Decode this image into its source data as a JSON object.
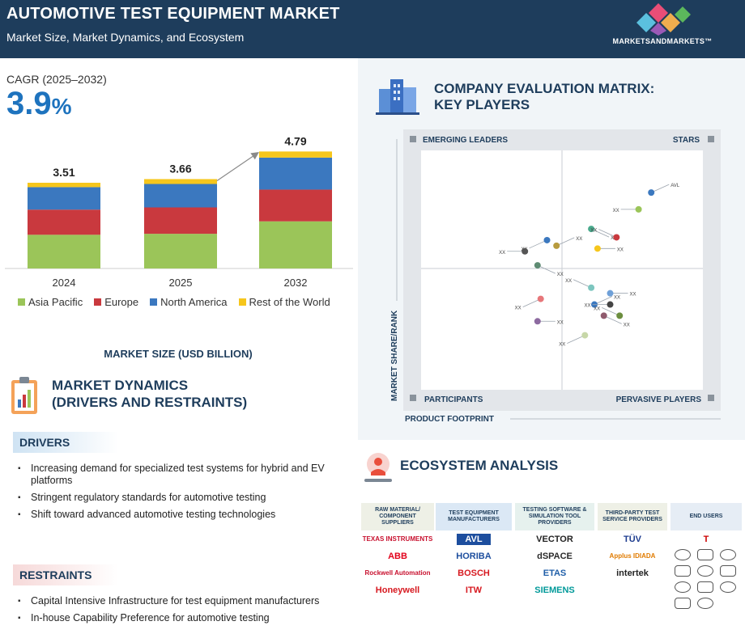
{
  "header": {
    "title": "AUTOMOTIVE TEST EQUIPMENT MARKET",
    "subtitle": "Market Size, Market Dynamics, and Ecosystem",
    "brand": "MARKETSANDMARKETS™"
  },
  "market_size": {
    "cagr_label": "CAGR (2025–2032)",
    "cagr_value": "3.9",
    "cagr_unit": "%",
    "caption": "MARKET SIZE (USD BILLION)"
  },
  "chart_data": {
    "type": "bar",
    "stacked": true,
    "categories": [
      "2024",
      "2025",
      "2032"
    ],
    "totals": [
      "3.51",
      "3.66",
      "4.79"
    ],
    "totals_values": [
      3.51,
      3.66,
      4.79
    ],
    "series": [
      {
        "name": "Asia Pacific",
        "color": "#9bc559",
        "values": [
          1.38,
          1.42,
          1.93
        ]
      },
      {
        "name": "Europe",
        "color": "#c9393e",
        "values": [
          1.03,
          1.08,
          1.3
        ]
      },
      {
        "name": "North America",
        "color": "#3b78bf",
        "values": [
          0.92,
          0.96,
          1.31
        ]
      },
      {
        "name": "Rest of the World",
        "color": "#f6c61c",
        "values": [
          0.18,
          0.2,
          0.25
        ]
      }
    ],
    "legend_position": "bottom",
    "grid": false
  },
  "dynamics": {
    "title_line1": "MARKET DYNAMICS",
    "title_line2": "(DRIVERS AND RESTRAINTS)",
    "drivers_label": "DRIVERS",
    "drivers": [
      "Increasing demand for specialized test systems for hybrid and EV platforms",
      "Stringent regulatory standards for  automotive testing",
      "Shift toward advanced automotive testing technologies"
    ],
    "restraints_label": "RESTRAINTS",
    "restraints": [
      "Capital Intensive Infrastructure for test equipment manufacturers",
      "In-house Capability Preference for automotive testing"
    ]
  },
  "matrix": {
    "title_line1": "COMPANY EVALUATION MATRIX:",
    "title_line2": "KEY PLAYERS",
    "quadrants": {
      "top_left": "EMERGING LEADERS",
      "top_right": "STARS",
      "bottom_left": "PARTICIPANTS",
      "bottom_right": "PERVASIVE PLAYERS"
    },
    "y_axis": "MARKET SHARE/RANK",
    "x_axis": "PRODUCT FOOTPRINT",
    "points": [
      {
        "label": "AVL",
        "color": "#3b78bf",
        "fx": 0.78,
        "fy": 0.22
      },
      {
        "label": "XX",
        "color": "#9bc559",
        "fx": 0.74,
        "fy": 0.28
      },
      {
        "label": "XX",
        "color": "#49a98c",
        "fx": 0.59,
        "fy": 0.35
      },
      {
        "label": "XX",
        "color": "#c9393e",
        "fx": 0.67,
        "fy": 0.38
      },
      {
        "label": "XX",
        "color": "#f6c61c",
        "fx": 0.61,
        "fy": 0.42
      },
      {
        "label": "XX",
        "color": "#3b78bf",
        "fx": 0.45,
        "fy": 0.39
      },
      {
        "label": "XX",
        "color": "#b89b3e",
        "fx": 0.48,
        "fy": 0.41
      },
      {
        "label": "XX",
        "color": "#555555",
        "fx": 0.38,
        "fy": 0.43
      },
      {
        "label": "XX",
        "color": "#5e8b73",
        "fx": 0.42,
        "fy": 0.48
      },
      {
        "label": "XX",
        "color": "#7dc6bf",
        "fx": 0.59,
        "fy": 0.56
      },
      {
        "label": "XX",
        "color": "#6fa0d8",
        "fx": 0.65,
        "fy": 0.58
      },
      {
        "label": "XX",
        "color": "#e7777a",
        "fx": 0.43,
        "fy": 0.6
      },
      {
        "label": "XX",
        "color": "#3b78bf",
        "fx": 0.6,
        "fy": 0.62
      },
      {
        "label": "XX",
        "color": "#444444",
        "fx": 0.65,
        "fy": 0.62
      },
      {
        "label": "XX",
        "color": "#8f5a6d",
        "fx": 0.63,
        "fy": 0.66
      },
      {
        "label": "XX",
        "color": "#6c8e3f",
        "fx": 0.68,
        "fy": 0.66
      },
      {
        "label": "XX",
        "color": "#8d6aa0",
        "fx": 0.42,
        "fy": 0.68
      },
      {
        "label": "XX",
        "color": "#c7d7a8",
        "fx": 0.57,
        "fy": 0.73
      }
    ]
  },
  "ecosystem": {
    "title": "ECOSYSTEM ANALYSIS",
    "columns": [
      {
        "header": "RAW MATERIAL/ COMPONENT SUPPLIERS",
        "bg": "#eef0e6",
        "logos": [
          {
            "text": "TEXAS INSTRUMENTS",
            "color": "#c8102e"
          },
          {
            "text": "ABB",
            "color": "#e2001a"
          },
          {
            "text": "Rockwell Automation",
            "color": "#c8102e"
          },
          {
            "text": "Honeywell",
            "color": "#d71920"
          }
        ]
      },
      {
        "header": "TEST EQUIPMENT MANUFACTURERS",
        "bg": "#dbe8f5",
        "logos": [
          {
            "text": "AVL",
            "color": "#ffffff"
          },
          {
            "text": "HORIBA",
            "color": "#1d4e9e"
          },
          {
            "text": "BOSCH",
            "color": "#d71920"
          },
          {
            "text": "ITW",
            "color": "#d71920"
          }
        ]
      },
      {
        "header": "TESTING SOFTWARE & SIMULATION TOOL PROVIDERS",
        "bg": "#e6f1ee",
        "logos": [
          {
            "text": "VECTOR",
            "color": "#222222"
          },
          {
            "text": "dSPACE",
            "color": "#2a2a2a"
          },
          {
            "text": "ETAS",
            "color": "#1f5ea8"
          },
          {
            "text": "SIEMENS",
            "color": "#009999"
          }
        ]
      },
      {
        "header": "THIRD-PARTY TEST SERVICE PROVIDERS",
        "bg": "#eef0e6",
        "logos": [
          {
            "text": "TÜV",
            "color": "#1e3d8f"
          },
          {
            "text": "Applus IDIADA",
            "color": "#e07b00"
          },
          {
            "text": "intertek",
            "color": "#222222"
          }
        ]
      },
      {
        "header": "END USERS",
        "bg": "#e6edf5",
        "logos": [
          {
            "text": "T",
            "color": "#cc0000"
          }
        ]
      }
    ]
  }
}
